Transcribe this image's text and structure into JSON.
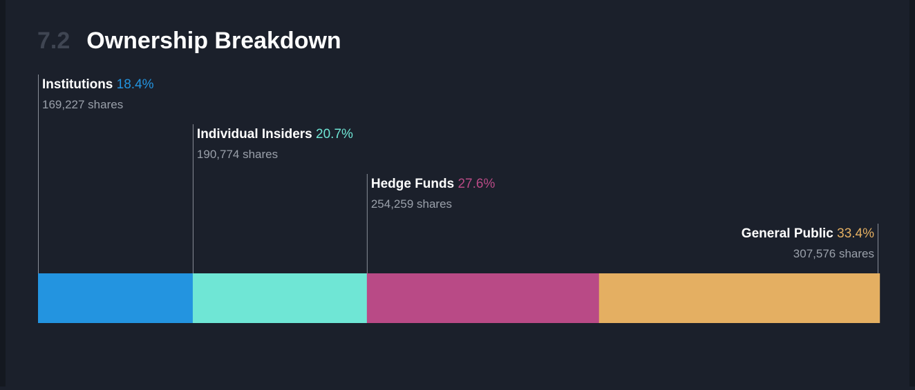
{
  "section": {
    "number": "7.2",
    "title": "Ownership Breakdown"
  },
  "chart_data": {
    "type": "bar",
    "orientation": "horizontal-stacked",
    "total_percent": 100,
    "segments": [
      {
        "name": "Institutions",
        "percent": 18.4,
        "percent_label": "18.4%",
        "shares_label": "169,227 shares",
        "color": "#2394e0"
      },
      {
        "name": "Individual Insiders",
        "percent": 20.7,
        "percent_label": "20.7%",
        "shares_label": "190,774 shares",
        "color": "#6fe6d5"
      },
      {
        "name": "Hedge Funds",
        "percent": 27.6,
        "percent_label": "27.6%",
        "shares_label": "254,259 shares",
        "color": "#b94a86"
      },
      {
        "name": "General Public",
        "percent": 33.4,
        "percent_label": "33.4%",
        "shares_label": "307,576 shares",
        "color": "#e4af62"
      }
    ]
  }
}
